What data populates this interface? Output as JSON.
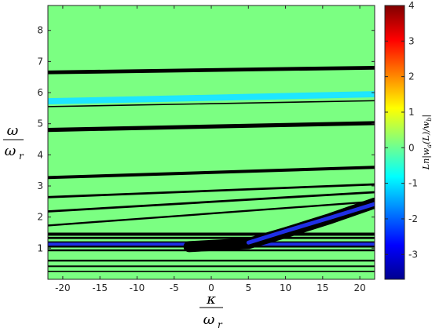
{
  "chart_data": {
    "type": "heatmap",
    "title": "",
    "xlabel_num": "κ",
    "xlabel_den": "ω",
    "xlabel_den_sub": "r",
    "ylabel_num": "ω",
    "ylabel_den": "ω",
    "ylabel_den_sub": "r",
    "xlim": [
      -22,
      22
    ],
    "ylim": [
      0,
      8.8
    ],
    "xticks": [
      -20,
      -15,
      -10,
      -5,
      0,
      5,
      10,
      15,
      20
    ],
    "yticks": [
      1,
      2,
      3,
      4,
      5,
      6,
      7,
      8
    ],
    "grid": false,
    "background_value": 0,
    "bands": [
      {
        "color": "#000000",
        "y_at_left": 6.65,
        "y_at_right": 6.8,
        "thickness": 0.12
      },
      {
        "color": "#1ee6ff",
        "y_at_left": 5.72,
        "y_at_right": 5.95,
        "thickness": 0.2
      },
      {
        "color": "#000000",
        "y_at_left": 5.55,
        "y_at_right": 5.74,
        "thickness": 0.04
      },
      {
        "color": "#000000",
        "y_at_left": 4.8,
        "y_at_right": 5.02,
        "thickness": 0.13
      },
      {
        "color": "#000000",
        "y_at_left": 3.27,
        "y_at_right": 3.6,
        "thickness": 0.1
      },
      {
        "color": "#000000",
        "y_at_left": 2.64,
        "y_at_right": 3.05,
        "thickness": 0.07
      },
      {
        "color": "#000000",
        "y_at_left": 2.18,
        "y_at_right": 2.8,
        "thickness": 0.07
      },
      {
        "color": "#000000",
        "y_at_left": 1.73,
        "y_at_right": 2.5,
        "thickness": 0.06
      },
      {
        "color": "#000000",
        "y_at_left": 1.45,
        "y_at_right": 1.45,
        "thickness": 0.1
      },
      {
        "color": "#000000",
        "y_at_left": 1.33,
        "y_at_right": 1.33,
        "thickness": 0.07
      },
      {
        "color": "#000000",
        "y_at_left": 1.12,
        "y_at_right": 1.12,
        "thickness": 0.2
      },
      {
        "color": "#1f2fe6",
        "y_at_left": 1.13,
        "y_at_right": 1.13,
        "thickness": 0.1
      },
      {
        "color": "#000000",
        "y_at_left": 0.93,
        "y_at_right": 0.93,
        "thickness": 0.06
      },
      {
        "color": "#000000",
        "y_at_left": 0.6,
        "y_at_right": 0.6,
        "thickness": 0.06
      },
      {
        "color": "#000000",
        "y_at_left": 0.42,
        "y_at_right": 0.42,
        "thickness": 0.05
      },
      {
        "color": "#000000",
        "y_at_left": 0.25,
        "y_at_right": 0.25,
        "thickness": 0.04
      }
    ],
    "anticrossing": {
      "dark_band": {
        "x": [
          -3,
          5,
          10,
          16,
          22
        ],
        "y": [
          1.05,
          1.15,
          1.5,
          1.95,
          2.45
        ]
      },
      "blue_band": {
        "x": [
          5,
          10,
          16,
          22
        ],
        "y": [
          1.18,
          1.55,
          1.98,
          2.42
        ]
      }
    },
    "colorbar": {
      "label": "Ln|w_a(L)/w_b|",
      "label_main": "Ln|w",
      "label_sub_a": "a",
      "label_mid": "(L)/w",
      "label_sub_b": "b",
      "label_end": "|",
      "limits": [
        -3.7,
        4
      ],
      "ticks": [
        -3,
        -2,
        -1,
        0,
        1,
        2,
        3,
        4
      ],
      "colormap": "jet",
      "location": "right"
    }
  }
}
